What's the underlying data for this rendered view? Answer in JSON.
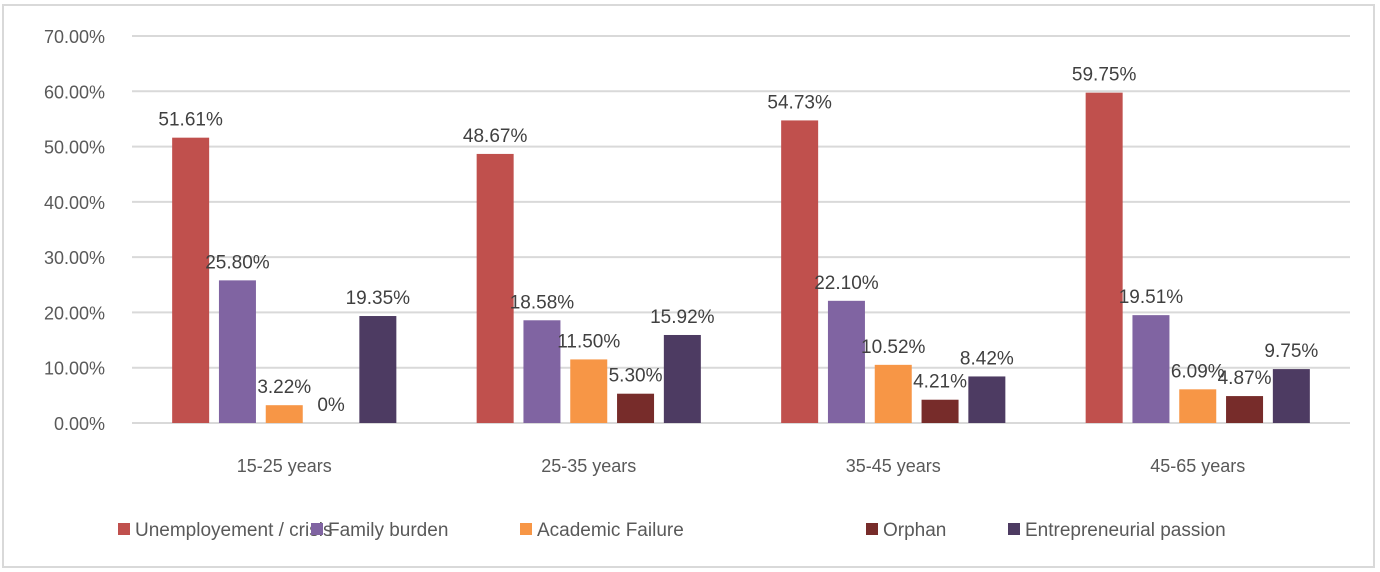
{
  "chart_data": {
    "type": "bar",
    "title": "",
    "xlabel": "",
    "ylabel": "",
    "ylim": [
      0,
      70
    ],
    "yticks": [
      "0.00%",
      "10.00%",
      "20.00%",
      "30.00%",
      "40.00%",
      "50.00%",
      "60.00%",
      "70.00%"
    ],
    "ytick_values": [
      0,
      10,
      20,
      30,
      40,
      50,
      60,
      70
    ],
    "grid": true,
    "legend_position": "bottom",
    "categories": [
      "15-25 years",
      "25-35 years",
      "35-45 years",
      "45-65 years"
    ],
    "series": [
      {
        "name": "Unemployement / crisis",
        "color": "#c0504d",
        "values": [
          51.61,
          48.67,
          54.73,
          59.75
        ],
        "labels": [
          "51.61%",
          "48.67%",
          "54.73%",
          "59.75%"
        ]
      },
      {
        "name": "Family burden",
        "color": "#8064a2",
        "values": [
          25.8,
          18.58,
          22.1,
          19.51
        ],
        "labels": [
          "25.80%",
          "18.58%",
          "22.10%",
          "19.51%"
        ]
      },
      {
        "name": "Academic Failure",
        "color": "#f79646",
        "values": [
          3.22,
          11.5,
          10.52,
          6.09
        ],
        "labels": [
          "3.22%",
          "11.50%",
          "10.52%",
          "6.09%"
        ]
      },
      {
        "name": "Orphan",
        "color": "#772c2a",
        "values": [
          0,
          5.3,
          4.21,
          4.87
        ],
        "labels": [
          "0%",
          "5.30%",
          "4.21%",
          "4.87%"
        ]
      },
      {
        "name": "Entrepreneurial passion",
        "color": "#4d3b62",
        "values": [
          19.35,
          15.92,
          8.42,
          9.75
        ],
        "labels": [
          "19.35%",
          "15.92%",
          "8.42%",
          "9.75%"
        ]
      }
    ]
  }
}
